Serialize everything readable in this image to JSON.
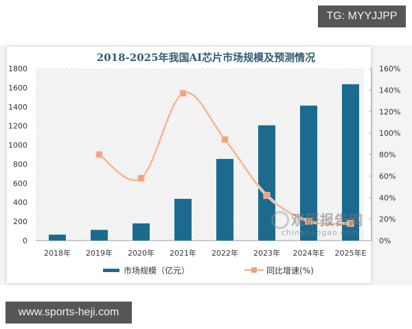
{
  "badges": {
    "top_right": "TG: MYYJJPP",
    "bottom_left": "www.sports-heji.com"
  },
  "watermark": {
    "main": "观研报告网",
    "sub": "chinabaogao.com"
  },
  "colors": {
    "bar": "#1d6a8f",
    "line": "#eea98a",
    "marker": "#f0a27e",
    "title": "#2e5d73"
  },
  "chart_data": {
    "type": "bar",
    "title": "2018-2025年我国AI芯片市场规模及预测情况",
    "categories": [
      "2018年",
      "2019年",
      "2020年",
      "2021年",
      "2022年",
      "2023年",
      "2024年E",
      "2025年E"
    ],
    "series": [
      {
        "name": "市场规模（亿元）",
        "type": "bar",
        "axis": "left",
        "values": [
          62,
          112,
          180,
          437,
          854,
          1206,
          1412,
          1636
        ]
      },
      {
        "name": "同比增速(%)",
        "type": "line",
        "axis": "right",
        "values": [
          null,
          80,
          58,
          137,
          94,
          42,
          18,
          16
        ]
      }
    ],
    "left_axis": {
      "ylim": [
        0,
        1800
      ],
      "ticks": [
        "0",
        "200",
        "400",
        "600",
        "800",
        "1000",
        "1200",
        "1400",
        "1600",
        "1800"
      ]
    },
    "right_axis": {
      "ylim": [
        0,
        160
      ],
      "ticks": [
        "0%",
        "20%",
        "40%",
        "60%",
        "80%",
        "100%",
        "120%",
        "140%",
        "160%"
      ]
    },
    "xlabel": "",
    "ylabel": "",
    "grid": false,
    "legend_position": "bottom",
    "legend": [
      "市场规模（亿元）",
      "同比增速(%)"
    ]
  }
}
